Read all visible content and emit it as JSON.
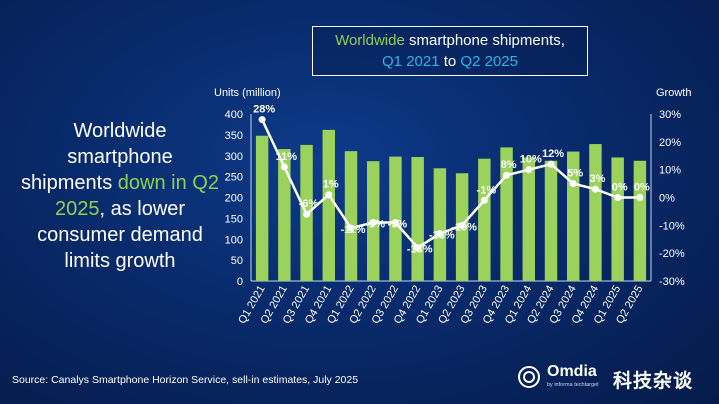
{
  "headline": {
    "part1": "Worldwide smartphone shipments ",
    "highlight": "down in Q2 2025",
    "part2": ", as lower consumer demand limits growth"
  },
  "title": {
    "line1_green": "Worldwide",
    "line1_rest": " smartphone shipments,",
    "line2_q1": "Q1 2021",
    "line2_to": " to ",
    "line2_q2": "Q2 2025"
  },
  "source": "Source: Canalys Smartphone Horizon Service, sell-in estimates, July 2025",
  "logo": {
    "brand": "Omdia",
    "tagline": "by informa techtarget"
  },
  "watermark": "科技杂谈",
  "colors": {
    "bar": "#9ad25b",
    "line": "#ffffff",
    "accent_green": "#8fd14f",
    "accent_cyan": "#29b6e8"
  },
  "chart_data": {
    "type": "bar",
    "categories": [
      "Q1 2021",
      "Q2 2021",
      "Q3 2021",
      "Q4 2021",
      "Q1 2022",
      "Q2 2022",
      "Q3 2022",
      "Q4 2022",
      "Q1 2023",
      "Q2 2023",
      "Q3 2023",
      "Q4 2023",
      "Q1 2024",
      "Q2 2024",
      "Q3 2024",
      "Q4 2024",
      "Q1 2025",
      "Q2 2025"
    ],
    "ylabel": "Units (million)",
    "y2label": "Growth",
    "ylim": [
      0,
      400
    ],
    "yticks": [
      "0",
      "50",
      "100",
      "150",
      "200",
      "250",
      "300",
      "350",
      "400"
    ],
    "y2lim": [
      -30,
      30
    ],
    "y2ticks": [
      "-30%",
      "-20%",
      "-10%",
      "0%",
      "10%",
      "20%",
      "30%"
    ],
    "series": [
      {
        "type": "bar",
        "axis": "left",
        "values": [
          348,
          316,
          326,
          362,
          311,
          287,
          298,
          297,
          270,
          258,
          293,
          320,
          296,
          288,
          310,
          328,
          296,
          288
        ]
      },
      {
        "type": "line",
        "axis": "right",
        "values": [
          28,
          11,
          -6,
          1,
          -11,
          -9,
          -9,
          -18,
          -13,
          -10,
          -1,
          8,
          10,
          12,
          5,
          3,
          0,
          0
        ],
        "labels": [
          "28%",
          "11%",
          "-6%",
          "1%",
          "-11%",
          "-9%",
          "-9%",
          "-18%",
          "-13%",
          "-10%",
          "-1%",
          "8%",
          "10%",
          "12%",
          "5%",
          "3%",
          "0%",
          "0%"
        ]
      }
    ]
  }
}
